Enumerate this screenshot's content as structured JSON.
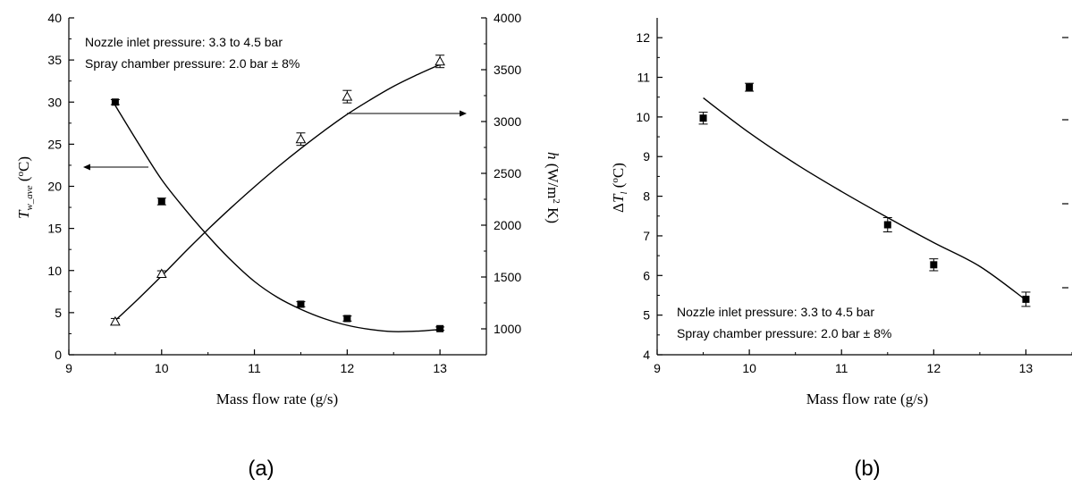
{
  "chart_data": [
    {
      "panel": "a",
      "type": "scatter",
      "caption": "(a)",
      "xlabel": "Mass flow rate (g/s)",
      "ylabel": "T_w_ave (°C)",
      "ylabel2": "h (W/m² K)",
      "xlim": [
        9,
        13.5
      ],
      "ylim": [
        0,
        40
      ],
      "y2lim": [
        750,
        4000
      ],
      "xticks": [
        "9",
        "10",
        "11",
        "12",
        "13"
      ],
      "yticks": [
        "0",
        "5",
        "10",
        "15",
        "20",
        "25",
        "30",
        "35",
        "40"
      ],
      "y2ticks": [
        "1000",
        "1500",
        "2000",
        "2500",
        "3000",
        "3500",
        "4000"
      ],
      "annotations": [
        "Nozzle inlet pressure: 3.3 to 4.5 bar",
        "Spray chamber pressure: 2.0 bar ± 8%"
      ],
      "series": [
        {
          "marker": "filled-square",
          "axis": "left",
          "x": [
            9.5,
            10,
            11.5,
            12,
            13
          ],
          "y": [
            30.0,
            18.2,
            6.0,
            4.3,
            3.1
          ],
          "err": [
            0.3,
            0.4,
            0.3,
            0.3,
            0.2
          ]
        },
        {
          "marker": "open-triangle",
          "axis": "right",
          "x": [
            9.5,
            10,
            11.5,
            12,
            13
          ],
          "y": [
            1070,
            1530,
            2830,
            3240,
            3580
          ],
          "err": [
            30,
            30,
            60,
            60,
            60
          ]
        }
      ],
      "fits": [
        {
          "axis": "left",
          "points": [
            [
              9.5,
              29.6
            ],
            [
              9.75,
              25.1
            ],
            [
              10,
              20.8
            ],
            [
              10.25,
              17.3
            ],
            [
              10.5,
              14.1
            ],
            [
              10.75,
              11.2
            ],
            [
              11,
              8.7
            ],
            [
              11.25,
              6.8
            ],
            [
              11.5,
              5.4
            ],
            [
              11.75,
              4.3
            ],
            [
              12,
              3.5
            ],
            [
              12.25,
              3.0
            ],
            [
              12.5,
              2.75
            ],
            [
              12.75,
              2.8
            ],
            [
              13,
              3.0
            ]
          ]
        },
        {
          "axis": "right",
          "points": [
            [
              9.5,
              1080
            ],
            [
              9.75,
              1290
            ],
            [
              10,
              1510
            ],
            [
              10.25,
              1740
            ],
            [
              10.5,
              1960
            ],
            [
              10.75,
              2170
            ],
            [
              11,
              2370
            ],
            [
              11.25,
              2560
            ],
            [
              11.5,
              2740
            ],
            [
              11.75,
              2910
            ],
            [
              12,
              3070
            ],
            [
              12.25,
              3210
            ],
            [
              12.5,
              3340
            ],
            [
              12.75,
              3450
            ],
            [
              13,
              3550
            ]
          ]
        }
      ]
    },
    {
      "panel": "b",
      "type": "scatter",
      "caption": "(b)",
      "xlabel": "Mass flow rate (g/s)",
      "ylabel": "ΔT_l (°C)",
      "xlim": [
        9,
        13.5
      ],
      "ylim": [
        4,
        12.5
      ],
      "xticks": [
        "9",
        "10",
        "11",
        "12",
        "13"
      ],
      "yticks": [
        "4",
        "5",
        "6",
        "7",
        "8",
        "9",
        "10",
        "11",
        "12"
      ],
      "annotations": [
        "Nozzle inlet pressure: 3.3 to 4.5 bar",
        "Spray chamber pressure: 2.0 bar ± 8%"
      ],
      "series": [
        {
          "marker": "filled-square",
          "x": [
            9.5,
            10,
            11.5,
            12,
            13
          ],
          "y": [
            9.97,
            10.75,
            7.28,
            6.27,
            5.4
          ],
          "err": [
            0.15,
            0.1,
            0.18,
            0.15,
            0.18
          ]
        }
      ],
      "fits": [
        {
          "points": [
            [
              9.5,
              10.48
            ],
            [
              10,
              9.6
            ],
            [
              10.5,
              8.82
            ],
            [
              11,
              8.12
            ],
            [
              11.5,
              7.46
            ],
            [
              12,
              6.83
            ],
            [
              12.5,
              6.23
            ],
            [
              13,
              5.38
            ]
          ]
        }
      ]
    }
  ]
}
